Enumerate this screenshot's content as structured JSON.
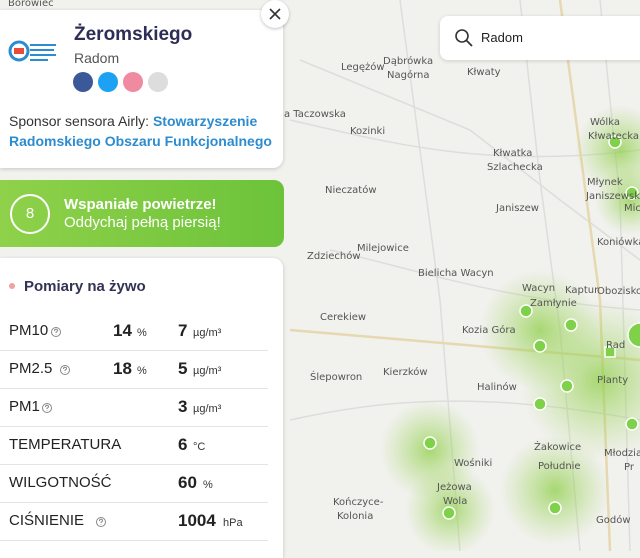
{
  "map": {
    "labels": [
      "Borowiec",
      "Legężów",
      "Dąbrówka",
      "Nagórna",
      "Kłwaty",
      "Wólka",
      "Kłwatecka",
      "a Taczowska",
      "Kozinki",
      "Kłwatka",
      "Szlachecka",
      "Młynek",
      "Janiszewski",
      "Mich",
      "Janiszew",
      "Nieczatów",
      "Koniówka",
      "Zdziechów",
      "Milejowice",
      "Bielicha Wacyn",
      "Wacyn",
      "Kaptur",
      "Obozisko",
      "Cerekiew",
      "Zamłynie",
      "Kozia Góra",
      "Rad",
      "Ślepowron",
      "Kierzków",
      "Halinów",
      "Planty",
      "Wośniki",
      "Żakowice",
      "Młodzian",
      "Pr",
      "Kończyce-",
      "Kolonia",
      "Jeżowa",
      "Wola",
      "Południe",
      "Godów"
    ]
  },
  "search": {
    "query": "Radom"
  },
  "panel": {
    "title": "Żeromskiego",
    "city": "Radom",
    "sponsor_label": "Sponsor sensora Airly:",
    "sponsor_name": "Stowarzyszenie Radomskiego Obszaru Funkcjonalnego"
  },
  "index": {
    "value": 8,
    "line1": "Wspaniałe powietrze!",
    "line2": "Oddychaj pełną piersią!"
  },
  "measurements": {
    "title": "Pomiary na żywo",
    "rows": [
      {
        "label": "PM10",
        "info": true,
        "percent": 14,
        "percent_unit": "%",
        "value": 7,
        "unit": "µg/m³"
      },
      {
        "label": "PM2.5",
        "info": true,
        "percent": 18,
        "percent_unit": "%",
        "value": 5,
        "unit": "µg/m³"
      },
      {
        "label": "PM1",
        "info": true,
        "value": 3,
        "unit": "µg/m³"
      },
      {
        "label": "TEMPERATURA",
        "info": false,
        "value": 6,
        "unit": "°C"
      },
      {
        "label": "WILGOTNOŚĆ",
        "info": false,
        "value": 60,
        "unit": "%"
      },
      {
        "label": "CIŚNIENIE",
        "info": true,
        "value": 1004,
        "unit": "hPa"
      }
    ]
  }
}
